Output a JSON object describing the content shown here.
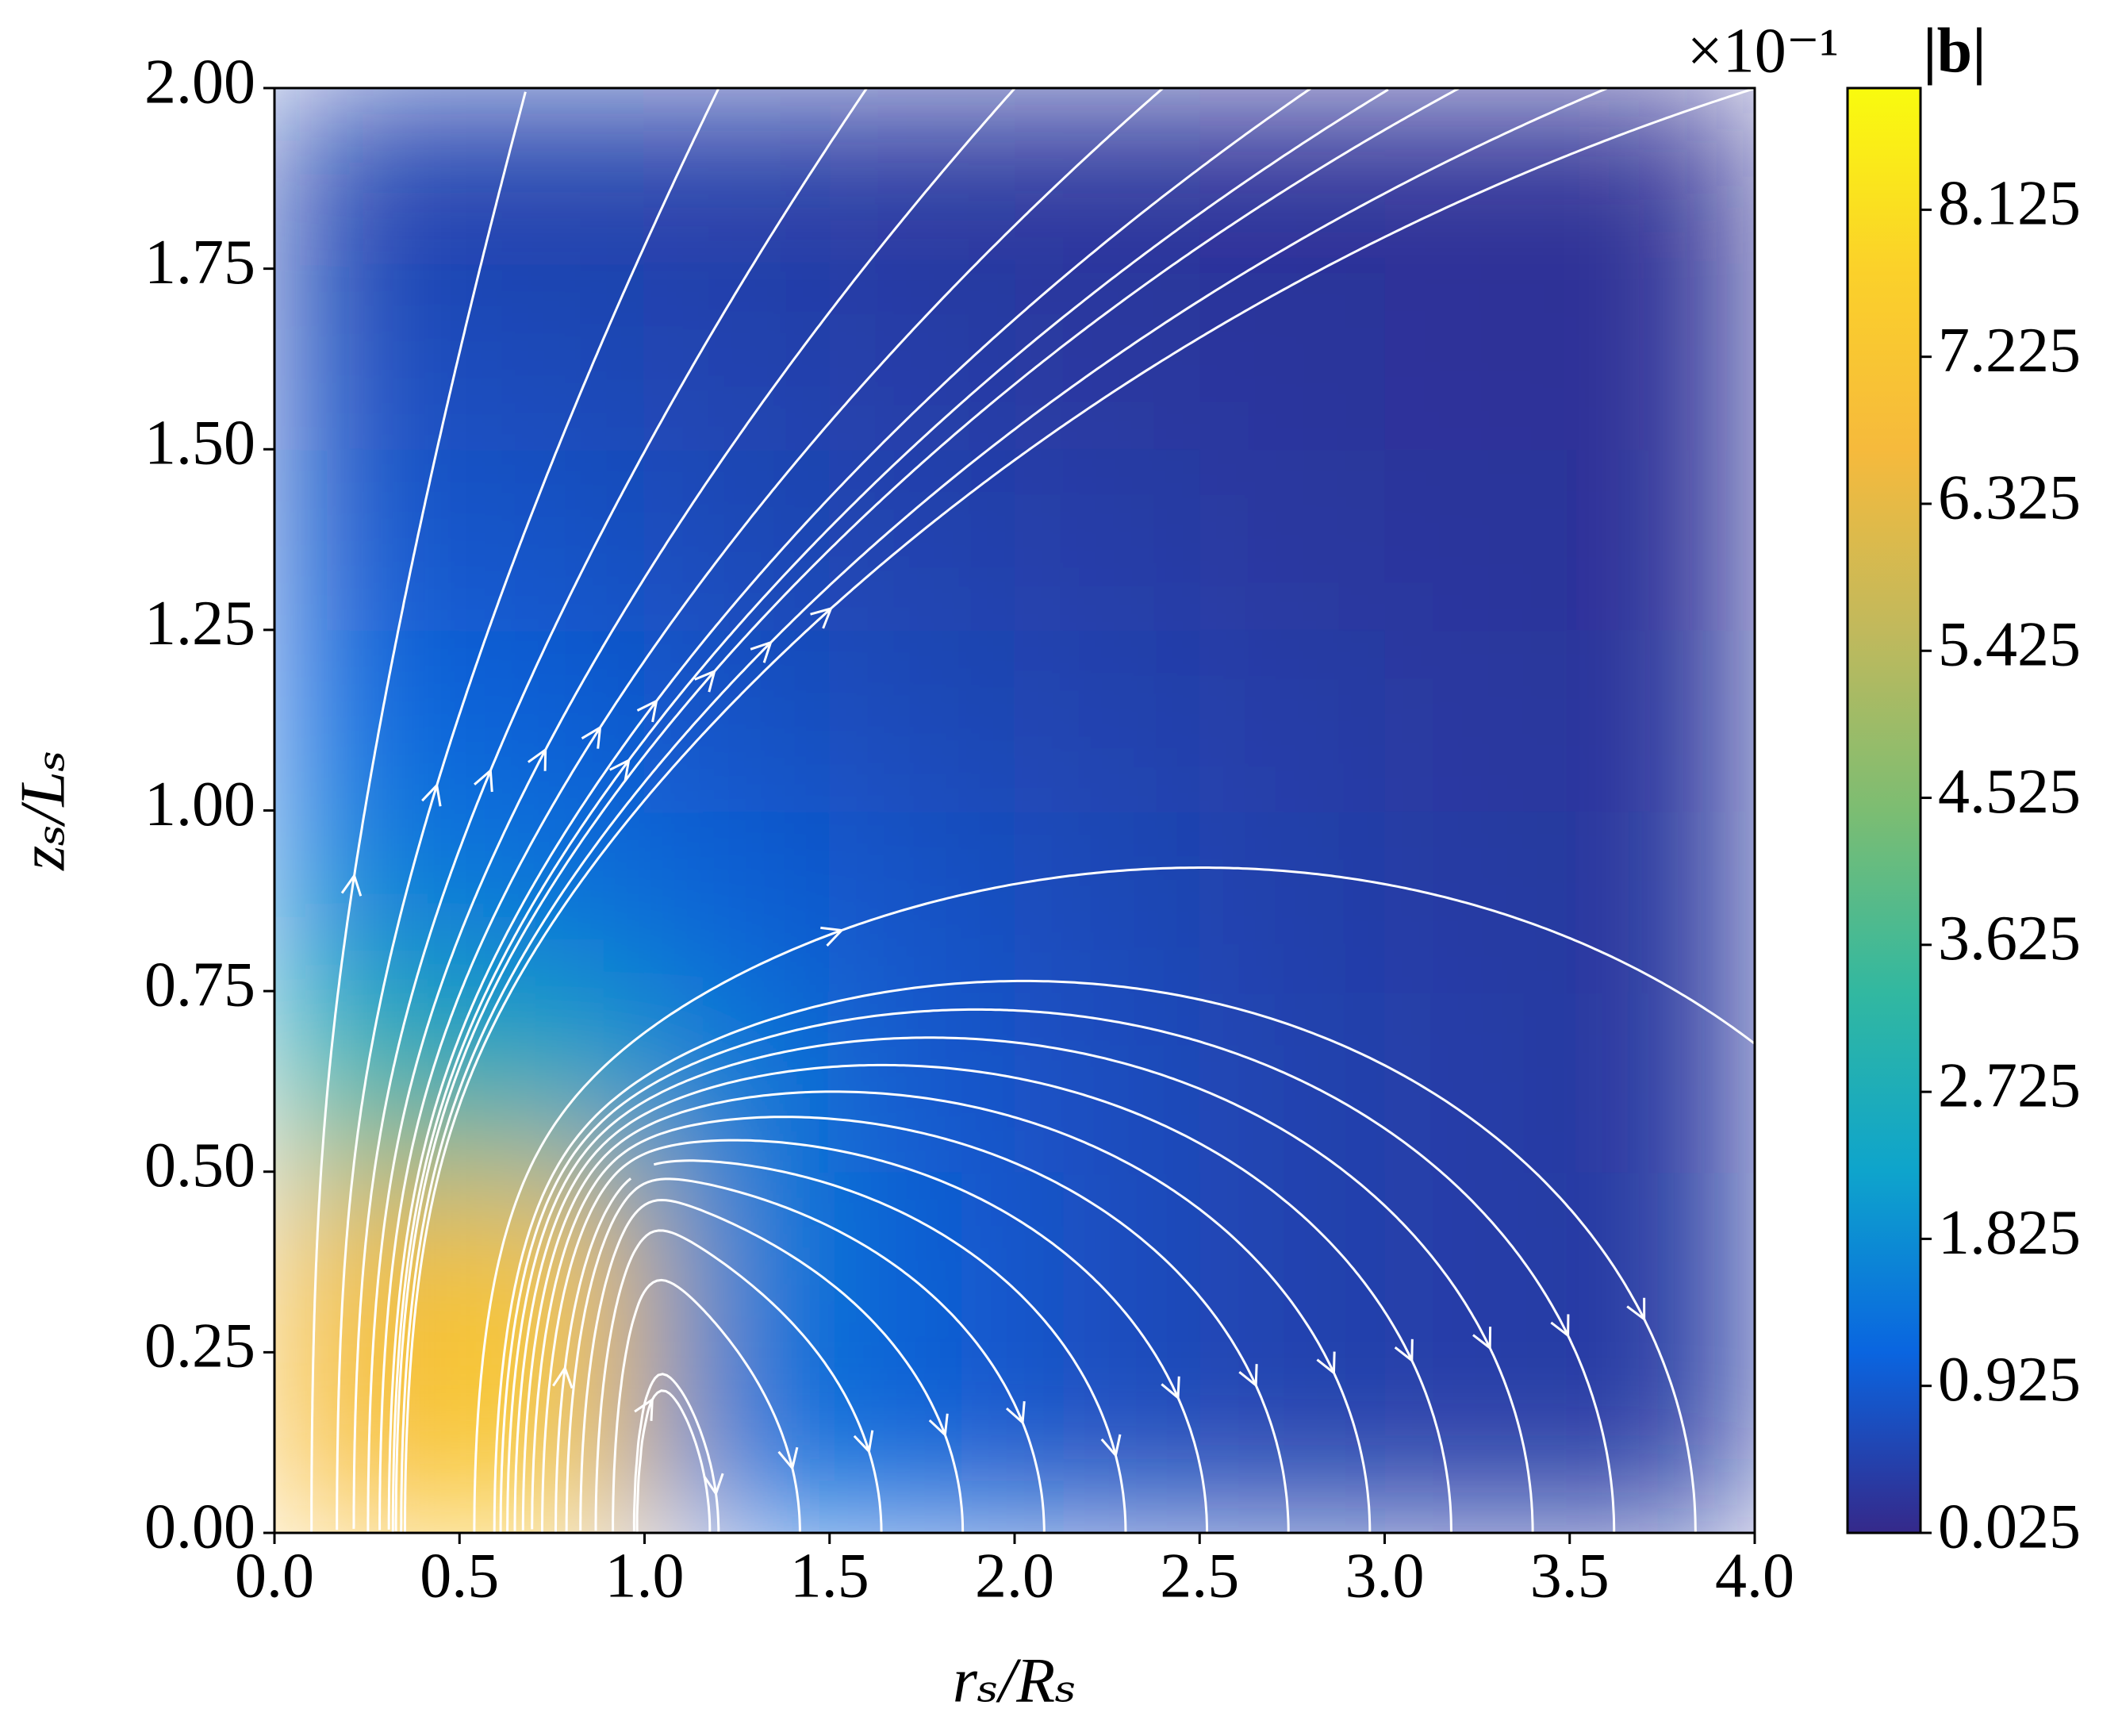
{
  "chart_data": {
    "type": "heatmap",
    "x_label": "rₛ/Rₛ",
    "y_label": "zₛ/Lₛ",
    "colorbar_label": "|b|",
    "colorbar_offset": "×10⁻¹",
    "x": [
      0.25,
      0.75,
      1.25,
      1.75,
      2.25,
      2.75,
      3.25,
      3.75
    ],
    "y": [
      0.125,
      0.375,
      0.625,
      0.875,
      1.125,
      1.375,
      1.625,
      1.875
    ],
    "z": [
      [
        6.8,
        7.6,
        1.4,
        1.0,
        0.7,
        0.5,
        0.4,
        0.35
      ],
      [
        6.5,
        7.4,
        1.6,
        1.0,
        0.7,
        0.5,
        0.4,
        0.35
      ],
      [
        3.2,
        2.6,
        1.5,
        0.9,
        0.7,
        0.5,
        0.4,
        0.3
      ],
      [
        1.6,
        1.4,
        1.0,
        0.8,
        0.6,
        0.45,
        0.35,
        0.3
      ],
      [
        1.2,
        1.0,
        0.8,
        0.6,
        0.5,
        0.4,
        0.3,
        0.25
      ],
      [
        0.9,
        0.8,
        0.6,
        0.5,
        0.4,
        0.3,
        0.25,
        0.2
      ],
      [
        0.7,
        0.6,
        0.5,
        0.4,
        0.3,
        0.25,
        0.2,
        0.2
      ],
      [
        0.5,
        0.45,
        0.4,
        0.3,
        0.25,
        0.2,
        0.2,
        0.15
      ]
    ],
    "xlim": [
      0,
      4
    ],
    "ylim": [
      0,
      2
    ],
    "xticks": [
      {
        "value": 0,
        "label": "0.0"
      },
      0.5,
      {
        "value": 1,
        "label": "1.0"
      },
      1.5,
      {
        "value": 2,
        "label": "2.0"
      },
      2.5,
      {
        "value": 3,
        "label": "3.0"
      },
      3.5,
      {
        "value": 4,
        "label": "4.0"
      }
    ],
    "yticks": [
      {
        "value": 0,
        "label": "0.00"
      },
      0.25,
      {
        "value": 0.5,
        "label": "0.50"
      },
      0.75,
      {
        "value": 1,
        "label": "1.00"
      },
      1.25,
      {
        "value": 1.5,
        "label": "1.50"
      },
      1.75,
      {
        "value": 2,
        "label": "2.00"
      }
    ],
    "clim": [
      0.025,
      8.87
    ],
    "cticks": [
      0.025,
      0.925,
      1.825,
      2.725,
      3.625,
      4.525,
      5.425,
      6.325,
      7.225,
      8.125
    ],
    "colormap": [
      "#35298a",
      "#0a65e0",
      "#0ea4cc",
      "#32b8a0",
      "#7cbd72",
      "#c1b95c",
      "#f6ba3c",
      "#fbd12a",
      "#f9fb0e"
    ],
    "streamline_color": "#ffffff"
  }
}
